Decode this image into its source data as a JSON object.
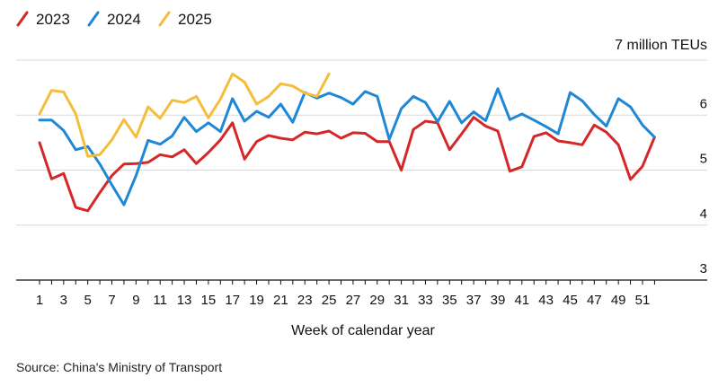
{
  "chart_data": {
    "type": "line",
    "unit_label": "7 million TEUs",
    "xlabel": "Week of calendar year",
    "source": "Source: China's Ministry of Transport",
    "x_ticks": [
      1,
      3,
      5,
      7,
      9,
      11,
      13,
      15,
      17,
      19,
      21,
      23,
      25,
      27,
      29,
      31,
      33,
      35,
      37,
      39,
      41,
      43,
      45,
      47,
      49,
      51
    ],
    "y_ticks": [
      3,
      4,
      5,
      6
    ],
    "ylim": [
      3,
      7
    ],
    "xlim": [
      0,
      54
    ],
    "grid": "horizontal",
    "legend_position": "top-left",
    "series": [
      {
        "name": "2023",
        "color": "#d62728",
        "values": [
          5.5,
          4.84,
          4.94,
          4.32,
          4.26,
          4.59,
          4.9,
          5.11,
          5.12,
          5.14,
          5.28,
          5.24,
          5.37,
          5.12,
          5.32,
          5.55,
          5.86,
          5.2,
          5.52,
          5.63,
          5.58,
          5.55,
          5.69,
          5.66,
          5.71,
          5.58,
          5.68,
          5.67,
          5.52,
          5.52,
          5.0,
          5.74,
          5.89,
          5.86,
          5.37,
          5.66,
          5.96,
          5.8,
          5.71,
          4.98,
          5.06,
          5.61,
          5.68,
          5.53,
          5.5,
          5.46,
          5.82,
          5.69,
          5.46,
          4.83,
          5.07,
          5.6
        ]
      },
      {
        "name": "2024",
        "color": "#1f88d6",
        "values": [
          5.91,
          5.91,
          5.72,
          5.37,
          5.43,
          5.11,
          4.73,
          4.37,
          4.9,
          5.54,
          5.47,
          5.62,
          5.96,
          5.7,
          5.86,
          5.7,
          6.3,
          5.89,
          6.07,
          5.96,
          6.2,
          5.87,
          6.41,
          6.31,
          6.4,
          6.32,
          6.2,
          6.43,
          6.34,
          5.56,
          6.12,
          6.34,
          6.23,
          5.88,
          6.25,
          5.86,
          6.06,
          5.9,
          6.48,
          5.92,
          6.02,
          5.91,
          5.79,
          5.66,
          6.41,
          6.26,
          6.01,
          5.8,
          6.3,
          6.15,
          5.82,
          5.6
        ]
      },
      {
        "name": "2025",
        "color": "#f5bd3c",
        "values": [
          6.02,
          6.45,
          6.42,
          6.02,
          5.25,
          5.28,
          5.55,
          5.92,
          5.6,
          6.15,
          5.94,
          6.27,
          6.23,
          6.34,
          5.95,
          6.29,
          6.75,
          6.6,
          6.2,
          6.34,
          6.57,
          6.53,
          6.4,
          6.34,
          6.75
        ]
      }
    ]
  }
}
